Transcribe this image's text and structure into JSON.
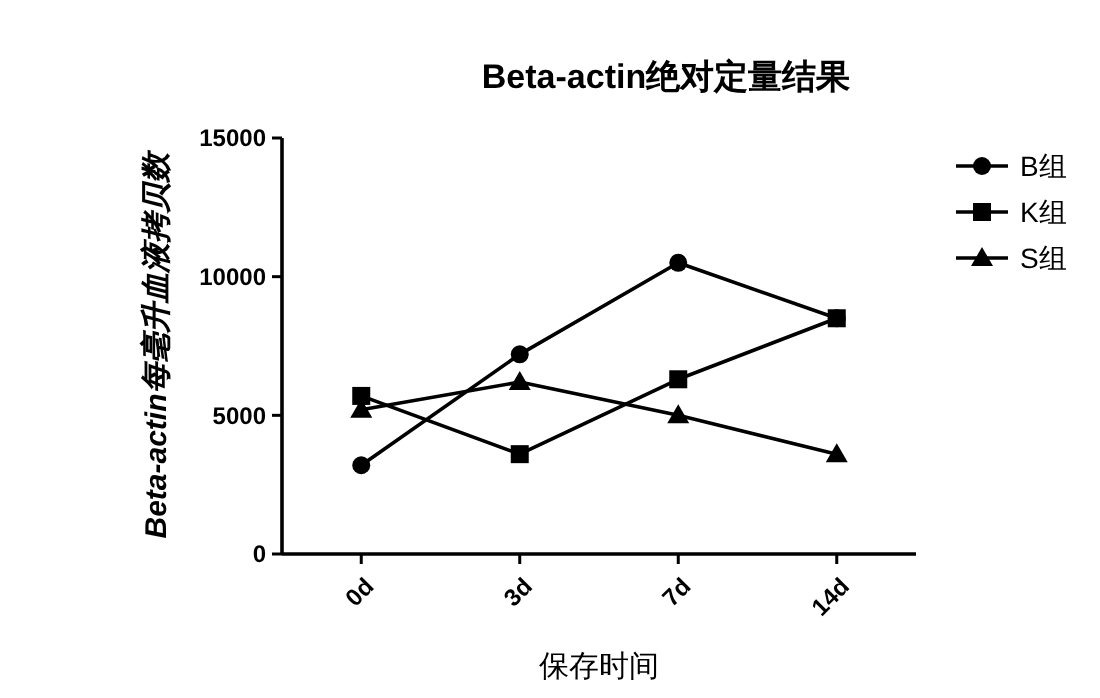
{
  "chart_data": {
    "type": "line",
    "title": "Beta-actin绝对定量结果",
    "xlabel": "保存时间",
    "ylabel": "Beta-actin每毫升血液拷贝数",
    "categories": [
      "0d",
      "3d",
      "7d",
      "14d"
    ],
    "series": [
      {
        "name": "B组",
        "color": "#000000",
        "marker": "circle",
        "values": [
          3200,
          7200,
          10500,
          8500
        ]
      },
      {
        "name": "K组",
        "color": "#000000",
        "marker": "square",
        "values": [
          5700,
          3600,
          6300,
          8500
        ]
      },
      {
        "name": "S组",
        "color": "#000000",
        "marker": "triangle",
        "values": [
          5200,
          6200,
          5000,
          3600
        ]
      }
    ],
    "ylim": [
      0,
      15000
    ],
    "yticks": [
      0,
      5000,
      10000,
      15000
    ],
    "grid": false,
    "legend": "right",
    "line_style": "solid"
  }
}
